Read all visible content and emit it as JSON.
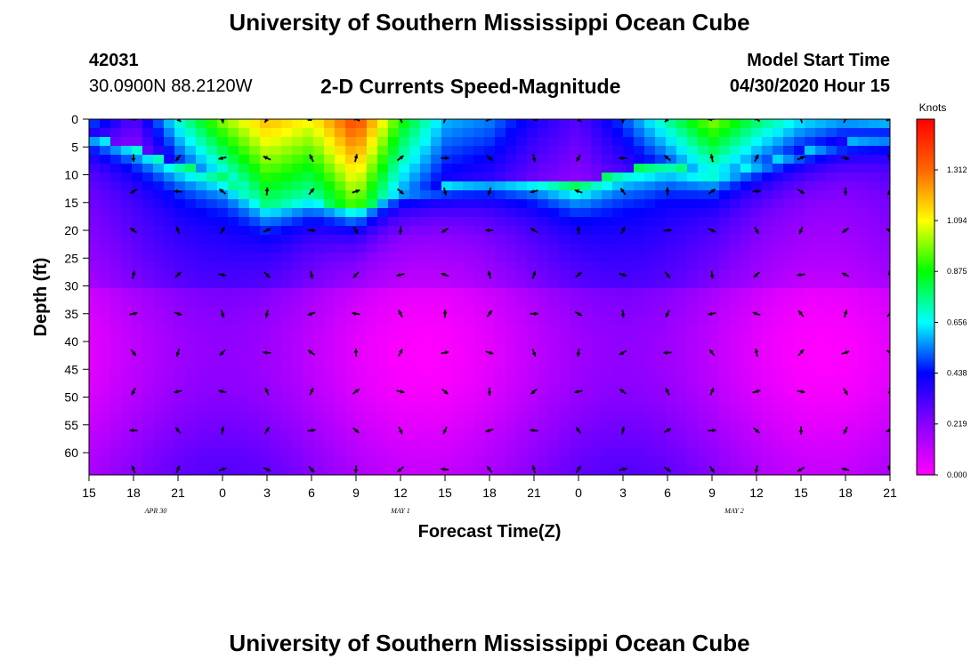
{
  "header": {
    "title": "University of Southern Mississippi Ocean Cube",
    "station_id": "42031",
    "coords": "30.0900N 88.2120W",
    "plot_title": "2-D Currents Speed-Magnitude",
    "model_start_label": "Model Start Time",
    "model_start_value": "04/30/2020 Hour 15"
  },
  "footer": {
    "title": "University of Southern Mississippi Ocean Cube"
  },
  "colors": {
    "background": "#ffffff",
    "arrow": "#000000"
  },
  "chart_data": {
    "type": "heatmap",
    "title": "2-D Currents Speed-Magnitude",
    "xlabel": "Forecast Time(Z)",
    "ylabel": "Depth (ft)",
    "x_tick_labels": [
      "15",
      "18",
      "21",
      "0",
      "3",
      "6",
      "9",
      "12",
      "15",
      "18",
      "21",
      "0",
      "3",
      "6",
      "9",
      "12",
      "15",
      "18",
      "21"
    ],
    "x_date_labels": [
      {
        "label": "APR 30",
        "at_tick": 1.5
      },
      {
        "label": "MAY 1",
        "at_tick": 7
      },
      {
        "label": "MAY 2",
        "at_tick": 14.5
      }
    ],
    "y_tick_labels": [
      "0",
      "5",
      "10",
      "15",
      "20",
      "25",
      "30",
      "35",
      "40",
      "45",
      "50",
      "55",
      "60"
    ],
    "ylim": [
      0,
      64
    ],
    "y_inverted": true,
    "colorbar": {
      "unit_label": "Knots",
      "tick_labels": [
        "0.000",
        "0.219",
        "0.438",
        "0.656",
        "0.875",
        "1.094",
        "1.312"
      ],
      "range": [
        0,
        1.53
      ],
      "colormap": [
        "#ff00ff",
        "#8800ff",
        "#0000ff",
        "#00ffff",
        "#00ff00",
        "#ffff00",
        "#ff6600",
        "#ff0000"
      ]
    },
    "surface_speed_profile": {
      "hours": [
        0,
        3,
        6,
        9,
        12,
        15,
        18,
        21,
        24,
        27,
        30,
        33,
        36,
        39,
        42,
        45,
        48,
        51,
        54
      ],
      "knots": [
        0.55,
        0.3,
        0.7,
        1.0,
        1.2,
        1.1,
        1.4,
        0.9,
        0.6,
        0.55,
        0.4,
        0.3,
        0.5,
        0.75,
        1.0,
        0.8,
        0.65,
        0.6,
        0.65
      ],
      "layer_depth_ft": [
        3,
        5,
        8,
        10,
        15,
        14,
        17,
        13,
        12,
        11,
        11,
        12,
        9,
        8,
        10,
        8,
        6,
        4,
        3
      ]
    },
    "vector_rows_depth_ft": [
      0,
      7,
      13,
      20,
      28,
      35,
      42,
      49,
      56,
      63
    ],
    "vector_cols_hours": [
      3,
      6,
      9,
      12,
      15,
      18,
      21,
      24,
      27,
      30,
      33,
      36,
      39,
      42,
      45,
      48,
      51,
      54
    ]
  }
}
